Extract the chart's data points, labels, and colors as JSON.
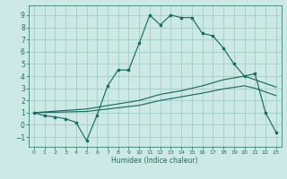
{
  "xlabel": "Humidex (Indice chaleur)",
  "xlim": [
    -0.5,
    23.5
  ],
  "ylim": [
    -1.8,
    9.8
  ],
  "xticks": [
    0,
    1,
    2,
    3,
    4,
    5,
    6,
    7,
    8,
    9,
    10,
    11,
    12,
    13,
    14,
    15,
    16,
    17,
    18,
    19,
    20,
    21,
    22,
    23
  ],
  "yticks": [
    -1,
    0,
    1,
    2,
    3,
    4,
    5,
    6,
    7,
    8,
    9
  ],
  "bg_color": "#cce9e6",
  "grid_color": "#a0cdc9",
  "line_color": "#1e6b60",
  "main_x": [
    0,
    1,
    2,
    3,
    4,
    5,
    6,
    7,
    8,
    9,
    10,
    11,
    12,
    13,
    14,
    15,
    16,
    17,
    18,
    19,
    20,
    21,
    22,
    23
  ],
  "main_y": [
    1.0,
    0.75,
    0.65,
    0.5,
    0.2,
    -1.3,
    0.8,
    3.2,
    4.5,
    4.5,
    6.7,
    9.0,
    8.2,
    9.0,
    8.8,
    8.8,
    7.5,
    7.3,
    6.3,
    5.0,
    4.0,
    4.2,
    1.0,
    -0.6
  ],
  "upper_x": [
    0,
    5,
    10,
    12,
    14,
    16,
    18,
    20,
    21,
    22,
    23
  ],
  "upper_y": [
    1.0,
    1.3,
    2.0,
    2.5,
    2.8,
    3.2,
    3.7,
    4.0,
    3.7,
    3.4,
    3.1
  ],
  "lower_x": [
    0,
    5,
    10,
    12,
    14,
    16,
    18,
    20,
    21,
    22,
    23
  ],
  "lower_y": [
    1.0,
    1.1,
    1.6,
    2.0,
    2.3,
    2.6,
    2.95,
    3.2,
    3.0,
    2.7,
    2.4
  ]
}
